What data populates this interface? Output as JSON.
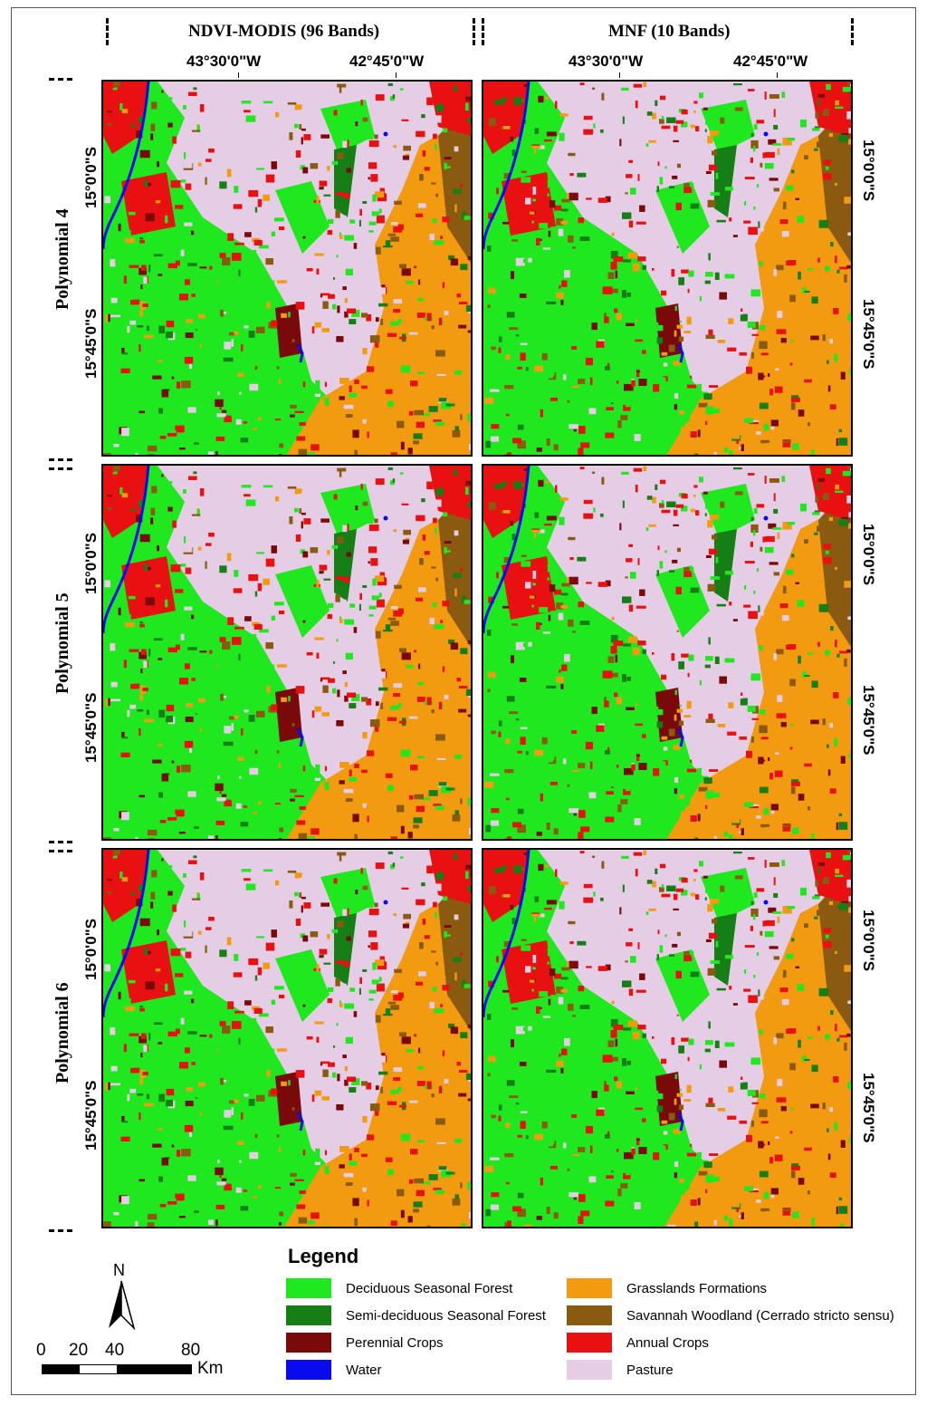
{
  "columns": [
    {
      "title": "NDVI-MODIS (96 Bands)"
    },
    {
      "title": "MNF (10 Bands)"
    }
  ],
  "rows": [
    {
      "title": "Polynomial 4"
    },
    {
      "title": "Polynomial 5"
    },
    {
      "title": "Polynomial 6"
    }
  ],
  "longitude_labels": [
    "43°30'0\"W",
    "42°45'0\"W"
  ],
  "latitude_labels": [
    "15°0'0\"S",
    "15°45'0\"S"
  ],
  "legend": {
    "title": "Legend",
    "items": [
      {
        "label": "Deciduous Seasonal Forest",
        "color": "#1fe81f"
      },
      {
        "label": "Semi-deciduous Seasonal Forest",
        "color": "#157f15"
      },
      {
        "label": "Perennial Crops",
        "color": "#7a0a0a"
      },
      {
        "label": "Water",
        "color": "#0a0aee"
      },
      {
        "label": "Grasslands Formations",
        "color": "#f29a10"
      },
      {
        "label": "Savannah Woodland (Cerrado stricto sensu)",
        "color": "#8a5a10"
      },
      {
        "label": "Annual Crops",
        "color": "#e81010"
      },
      {
        "label": "Pasture",
        "color": "#e6cde6"
      }
    ]
  },
  "north_arrow": {
    "label": "N"
  },
  "scale_bar": {
    "ticks": [
      "0",
      "20",
      "40",
      "80"
    ],
    "unit": "Km"
  }
}
